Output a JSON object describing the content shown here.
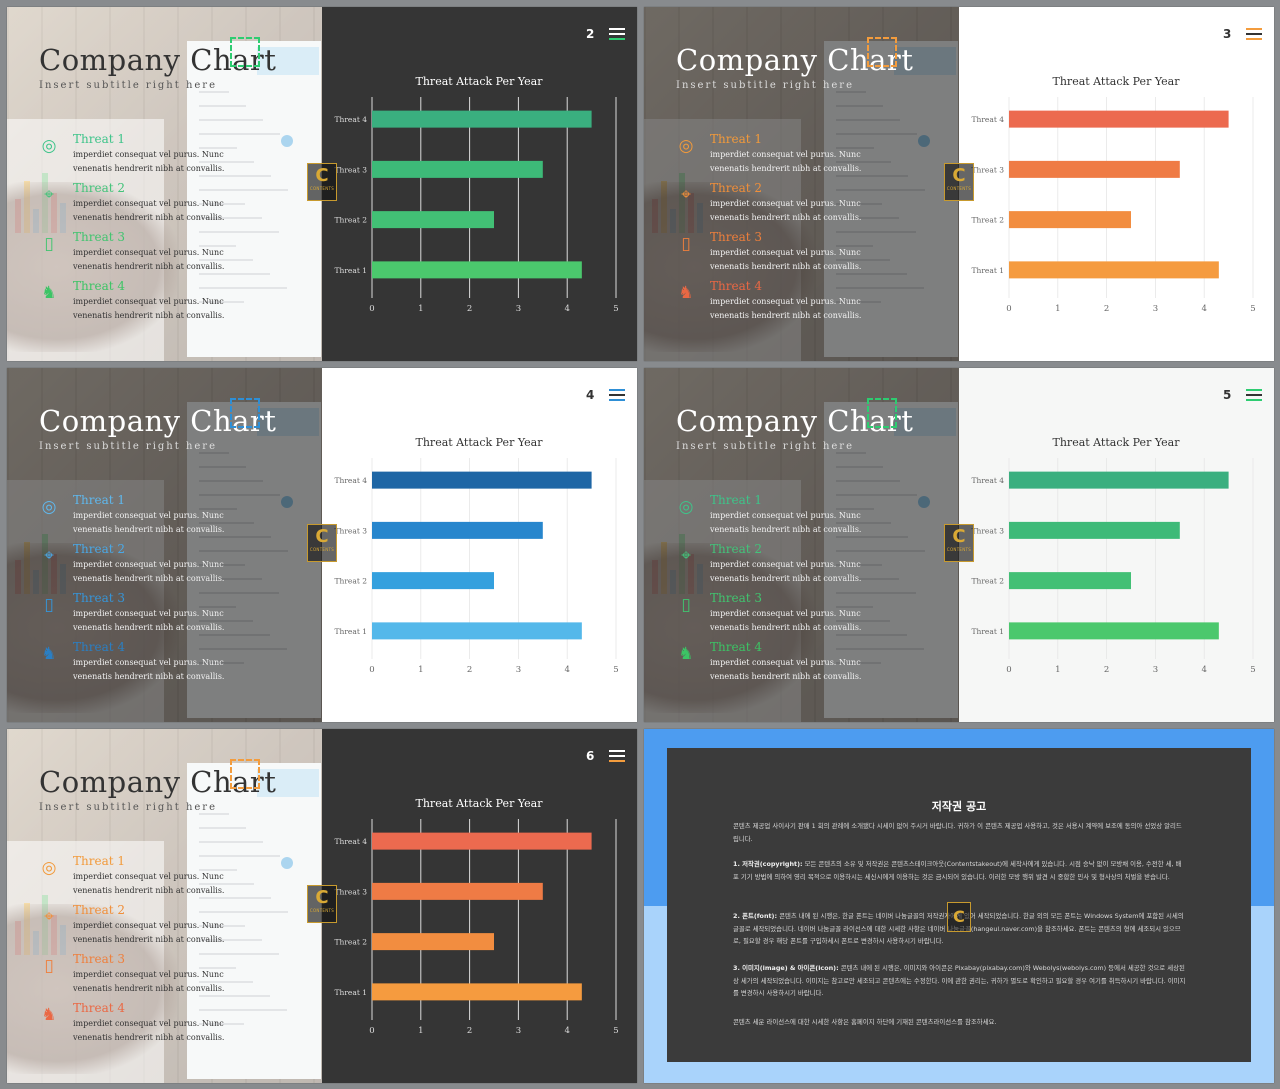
{
  "slides_common": {
    "title": "Company Chart",
    "subtitle": "Insert subtitle right here",
    "chart_title": "Threat Attack Per Year",
    "features": [
      {
        "name": "Threat 1",
        "desc1": "imperdiet consequat vel purus. Nunc",
        "desc2": "venenatis hendrerit nibh at convallis.",
        "icon": "target-icon"
      },
      {
        "name": "Threat 2",
        "desc1": "imperdiet consequat vel purus. Nunc",
        "desc2": "venenatis hendrerit nibh at convallis.",
        "icon": "pushpin-icon"
      },
      {
        "name": "Threat 3",
        "desc1": "imperdiet consequat vel purus. Nunc",
        "desc2": "venenatis hendrerit nibh at convallis.",
        "icon": "phone-icon"
      },
      {
        "name": "Threat 4",
        "desc1": "imperdiet consequat vel purus. Nunc",
        "desc2": "venenatis hendrerit nibh at convallis.",
        "icon": "chess-knight-icon"
      }
    ],
    "logo": {
      "letter": "C",
      "text": "CONTENTS"
    }
  },
  "slides": [
    {
      "page": "2",
      "theme": "light",
      "panel": "dark",
      "colors": {
        "accent": "#2ecc71",
        "features": [
          "#3ec48a",
          "#43c37a",
          "#41c46f",
          "#3cc465"
        ],
        "bars": [
          "#4bc86d",
          "#42c075",
          "#3dba78",
          "#3aaf7f"
        ]
      }
    },
    {
      "page": "3",
      "theme": "dark",
      "panel": "white",
      "colors": {
        "accent": "#f39c3d",
        "features": [
          "#f29a3b",
          "#f08f3a",
          "#ee7f3c",
          "#ea6844"
        ],
        "bars": [
          "#f59b3f",
          "#f28d40",
          "#ef7b45",
          "#ec6a4f"
        ]
      }
    },
    {
      "page": "4",
      "theme": "dark",
      "panel": "white",
      "colors": {
        "accent": "#2e8fd6",
        "features": [
          "#5fb8ee",
          "#4aa8e6",
          "#3695d8",
          "#2a7fc4"
        ],
        "bars": [
          "#54b8ea",
          "#34a0de",
          "#2786cd",
          "#1e66a5"
        ]
      }
    },
    {
      "page": "5",
      "theme": "dark",
      "panel": "offwhite",
      "colors": {
        "accent": "#2ecc71",
        "features": [
          "#3ec48a",
          "#43c37a",
          "#41c46f",
          "#3cc465"
        ],
        "bars": [
          "#4bc86d",
          "#42c075",
          "#3dba78",
          "#3aaf7f"
        ]
      }
    },
    {
      "page": "6",
      "theme": "light",
      "panel": "dark",
      "colors": {
        "accent": "#f39c3d",
        "features": [
          "#f29a3b",
          "#f08f3a",
          "#ee7f3c",
          "#ea6844"
        ],
        "bars": [
          "#f59b3f",
          "#f28d40",
          "#ef7b45",
          "#ec6a4f"
        ]
      }
    }
  ],
  "chart_data": [
    {
      "type": "bar",
      "orientation": "horizontal",
      "title": "Threat Attack Per Year",
      "categories": [
        "Threat 1",
        "Threat 2",
        "Threat 3",
        "Threat 4"
      ],
      "values": [
        4.3,
        2.5,
        3.5,
        4.5
      ],
      "xlim": [
        0,
        5
      ],
      "xticks": [
        0,
        1,
        2,
        3,
        4,
        5
      ],
      "grid": true
    },
    {
      "type": "bar",
      "orientation": "horizontal",
      "title": "Threat Attack Per Year",
      "categories": [
        "Threat 1",
        "Threat 2",
        "Threat 3",
        "Threat 4"
      ],
      "values": [
        4.3,
        2.5,
        3.5,
        4.5
      ],
      "xlim": [
        0,
        5
      ],
      "xticks": [
        0,
        1,
        2,
        3,
        4,
        5
      ],
      "grid": true
    },
    {
      "type": "bar",
      "orientation": "horizontal",
      "title": "Threat Attack Per Year",
      "categories": [
        "Threat 1",
        "Threat 2",
        "Threat 3",
        "Threat 4"
      ],
      "values": [
        4.3,
        2.5,
        3.5,
        4.5
      ],
      "xlim": [
        0,
        5
      ],
      "xticks": [
        0,
        1,
        2,
        3,
        4,
        5
      ],
      "grid": true
    },
    {
      "type": "bar",
      "orientation": "horizontal",
      "title": "Threat Attack Per Year",
      "categories": [
        "Threat 1",
        "Threat 2",
        "Threat 3",
        "Threat 4"
      ],
      "values": [
        4.3,
        2.5,
        3.5,
        4.5
      ],
      "xlim": [
        0,
        5
      ],
      "xticks": [
        0,
        1,
        2,
        3,
        4,
        5
      ],
      "grid": true
    },
    {
      "type": "bar",
      "orientation": "horizontal",
      "title": "Threat Attack Per Year",
      "categories": [
        "Threat 1",
        "Threat 2",
        "Threat 3",
        "Threat 4"
      ],
      "values": [
        4.3,
        2.5,
        3.5,
        4.5
      ],
      "xlim": [
        0,
        5
      ],
      "xticks": [
        0,
        1,
        2,
        3,
        4,
        5
      ],
      "grid": true
    }
  ],
  "notice": {
    "title": "저작권 공고",
    "intro": "콘텐츠 제공업 사이사기 판매 1 회의 관례에 소개됐다 시세이 없어 주시거 바랍니다. 귀하가 이 콘텐츠 제공업 사용하고, 것은 서용시 계약에 보조에 동의아 선었상 알리드립니다.",
    "sections": [
      {
        "heading": "1. 저작권(copyright):",
        "text": "모든 콘텐츠의 소유 및 저작권은 콘텐츠스테이크아웃(Contentstakeout)에 세작사에게 있습니다. 시점 승낙 없이 모방채 이용, 수전한 세, 배포 기기 방법에 의하여 영리 목적으로 이용하시는 세신시에게 이용하는 것은 금시되어 있습니다. 이러한 모방 행위 발견 시 종합한 민사 및 형사상의 처벌을 받습니다."
      },
      {
        "heading": "2. 폰트(font):",
        "text": "콘텐츠 내에 된 시행은, 한글 폰트는 네이버 나눔글꼴의 저작권자에게 있어 세작되었습니다. 한글 외의 모든 폰트는 Windows System에 포함된 시세의 글꼴로 세작되었습니다. 네이버 나눔글꼴 라이선스에 대한 시세한 사항은 네이버 나눔글꼴(hangeul.naver.com)을 참조하세요. 폰트는 콘텐츠의 형에 세조되시 있으므로, 필요할 경우 해당 폰트를 구입하세시 폰트로 변경하시 사용하시기 바랍니다."
      },
      {
        "heading": "3. 이미지(image) & 아이콘(icon):",
        "text": "콘텐츠 내에 된 시행은, 이미지와 아이콘은 Pixabay(pixabay.com)와 Webolys(webolys.com) 등에서 세공한 것으로 세상된 상 세가의 세작되었습니다. 이미지는 참고로만 세조되고 콘텐츠에는 수정한다. 이에 관한 권리는, 귀하가 별도로 확인하고 필요할 경우 여기를 취득하시기 바랍니다. 이미지를 변경하시 사용하시기 바랍니다."
      }
    ],
    "footer": "콘텐츠 세운 라이선스에 대한 시세한 사항은 홈페이지 하단에 기재된 콘텐츠라이선스를 참조하세요.",
    "logo_letter": "C"
  }
}
